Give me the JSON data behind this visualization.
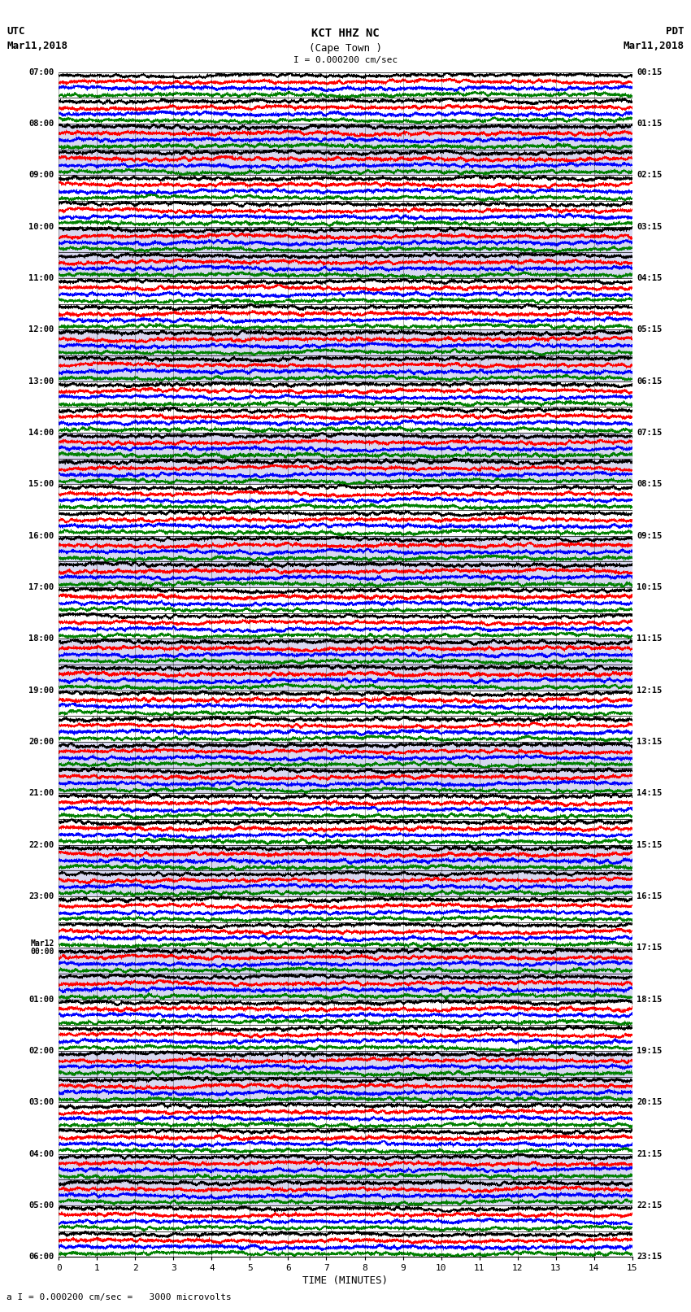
{
  "title_line1": "KCT HHZ NC",
  "title_line2": "(Cape Town )",
  "scale_bar": "I = 0.000200 cm/sec",
  "left_header1": "UTC",
  "left_header2": "Mar11,2018",
  "right_header1": "PDT",
  "right_header2": "Mar11,2018",
  "xlabel": "TIME (MINUTES)",
  "footer": "a I = 0.000200 cm/sec =   3000 microvolts",
  "utc_labels": [
    "07:00",
    "08:00",
    "09:00",
    "10:00",
    "11:00",
    "12:00",
    "13:00",
    "14:00",
    "15:00",
    "16:00",
    "17:00",
    "18:00",
    "19:00",
    "20:00",
    "21:00",
    "22:00",
    "23:00",
    "Mar12\n00:00",
    "01:00",
    "02:00",
    "03:00",
    "04:00",
    "05:00",
    "06:00"
  ],
  "pdt_labels": [
    "00:15",
    "01:15",
    "02:15",
    "03:15",
    "04:15",
    "05:15",
    "06:15",
    "07:15",
    "08:15",
    "09:15",
    "10:15",
    "11:15",
    "12:15",
    "13:15",
    "14:15",
    "15:15",
    "16:15",
    "17:15",
    "18:15",
    "19:15",
    "20:15",
    "21:15",
    "22:15",
    "23:15"
  ],
  "n_rows": 46,
  "n_traces_per_row": 4,
  "colors": [
    "black",
    "red",
    "blue",
    "green"
  ],
  "xlim": [
    0,
    15
  ],
  "x_ticks": [
    0,
    1,
    2,
    3,
    4,
    5,
    6,
    7,
    8,
    9,
    10,
    11,
    12,
    13,
    14,
    15
  ],
  "seed": 42,
  "n_hours": 23,
  "rows_per_hour": 2
}
